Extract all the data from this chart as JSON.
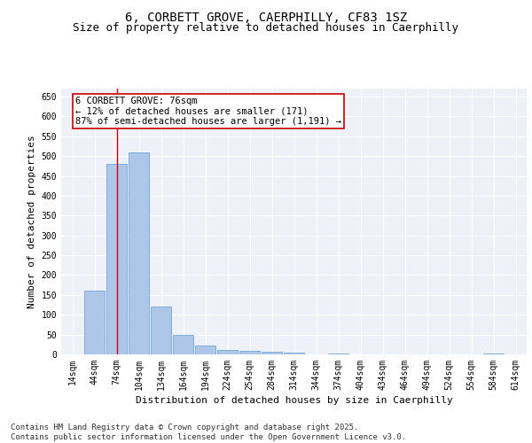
{
  "title_line1": "6, CORBETT GROVE, CAERPHILLY, CF83 1SZ",
  "title_line2": "Size of property relative to detached houses in Caerphilly",
  "xlabel": "Distribution of detached houses by size in Caerphilly",
  "ylabel": "Number of detached properties",
  "bar_labels": [
    "14sqm",
    "44sqm",
    "74sqm",
    "104sqm",
    "134sqm",
    "164sqm",
    "194sqm",
    "224sqm",
    "254sqm",
    "284sqm",
    "314sqm",
    "344sqm",
    "374sqm",
    "404sqm",
    "434sqm",
    "464sqm",
    "494sqm",
    "524sqm",
    "554sqm",
    "584sqm",
    "614sqm"
  ],
  "bar_values": [
    0,
    160,
    480,
    510,
    120,
    50,
    22,
    12,
    10,
    7,
    5,
    0,
    3,
    0,
    0,
    0,
    0,
    0,
    0,
    3,
    0
  ],
  "bar_color": "#aec6e8",
  "bar_edge_color": "#5b9bd5",
  "vline_x": 2,
  "vline_color": "#cc0000",
  "annotation_text": "6 CORBETT GROVE: 76sqm\n← 12% of detached houses are smaller (171)\n87% of semi-detached houses are larger (1,191) →",
  "annotation_box_color": "#ffffff",
  "annotation_box_edge_color": "#cc0000",
  "ylim": [
    0,
    670
  ],
  "yticks": [
    0,
    50,
    100,
    150,
    200,
    250,
    300,
    350,
    400,
    450,
    500,
    550,
    600,
    650
  ],
  "footer_text": "Contains HM Land Registry data © Crown copyright and database right 2025.\nContains public sector information licensed under the Open Government Licence v3.0.",
  "background_color": "#eef2f8",
  "grid_color": "#ffffff",
  "title_fontsize": 10,
  "subtitle_fontsize": 9,
  "axis_label_fontsize": 8,
  "tick_fontsize": 7,
  "annotation_fontsize": 7.5,
  "footer_fontsize": 6.5
}
